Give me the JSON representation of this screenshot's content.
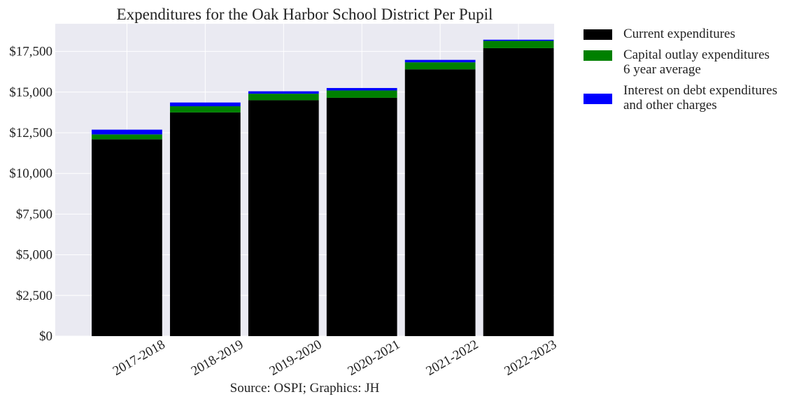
{
  "chart_data": {
    "type": "bar",
    "stacked": true,
    "title": "Expenditures for the Oak Harbor School District Per Pupil",
    "caption": "Source: OSPI; Graphics: JH",
    "xlabel": "",
    "ylabel": "",
    "categories": [
      "2017-2018",
      "2018-2019",
      "2019-2020",
      "2020-2021",
      "2021-2022",
      "2022-2023"
    ],
    "ylim": [
      0,
      19200
    ],
    "yticks": [
      0,
      2500,
      5000,
      7500,
      10000,
      12500,
      15000,
      17500
    ],
    "ytick_labels": [
      "$0",
      "$2,500",
      "$5,000",
      "$7,500",
      "$10,000",
      "$12,500",
      "$15,000",
      "$17,500"
    ],
    "grid": true,
    "legend_position": "outside-right",
    "series": [
      {
        "name": "Current expenditures",
        "color": "#000000",
        "values": [
          12100,
          13750,
          14500,
          14650,
          16400,
          17700
        ]
      },
      {
        "name": "Capital outlay expenditures\n6 year average",
        "color": "#008000",
        "values": [
          300,
          380,
          400,
          450,
          430,
          450
        ]
      },
      {
        "name": "Interest on debt expenditures\nand other charges",
        "color": "#0000ff",
        "values": [
          290,
          230,
          150,
          150,
          150,
          70
        ]
      }
    ]
  }
}
